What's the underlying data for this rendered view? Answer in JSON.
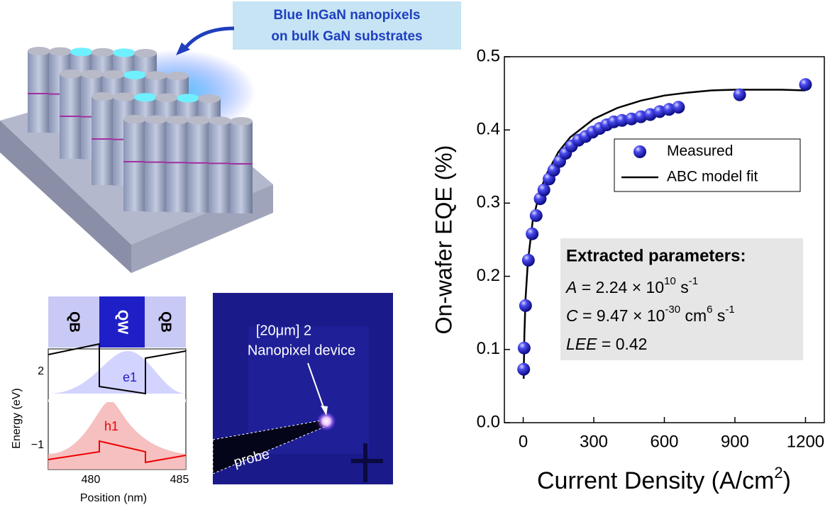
{
  "chart_data": {
    "type": "scatter",
    "xlabel": {
      "text": "Current Density (A/cm",
      "sup": "2",
      "end": ")"
    },
    "ylabel": "On-wafer EQE (%)",
    "xlim": [
      -80,
      1280
    ],
    "xticks": [
      0,
      300,
      600,
      900,
      1200
    ],
    "ylim": [
      0,
      0.5
    ],
    "yticks": [
      {
        "value": 0,
        "label": "0.0"
      },
      0.1,
      0.2,
      0.3,
      0.4,
      0.5
    ],
    "legend": "upper right",
    "series": [
      {
        "name": "Measured",
        "kind": "points",
        "color": "#2b2bd9",
        "x": [
          2,
          4,
          10,
          22,
          38,
          55,
          72,
          88,
          110,
          130,
          155,
          180,
          205,
          235,
          265,
          295,
          325,
          355,
          385,
          420,
          460,
          500,
          540,
          580,
          620,
          660,
          920,
          1200
        ],
        "values": [
          0.073,
          0.102,
          0.16,
          0.222,
          0.258,
          0.283,
          0.306,
          0.318,
          0.333,
          0.345,
          0.357,
          0.368,
          0.378,
          0.386,
          0.391,
          0.397,
          0.402,
          0.407,
          0.411,
          0.413,
          0.415,
          0.418,
          0.421,
          0.425,
          0.428,
          0.431,
          0.448,
          0.462
        ]
      },
      {
        "name": "ABC model fit",
        "kind": "line",
        "color": "#000000",
        "x": [
          2,
          5,
          10,
          20,
          40,
          70,
          100,
          150,
          200,
          300,
          400,
          500,
          600,
          700,
          800,
          900,
          1000,
          1100,
          1200
        ],
        "values": [
          0.06,
          0.12,
          0.17,
          0.22,
          0.275,
          0.315,
          0.34,
          0.37,
          0.39,
          0.415,
          0.43,
          0.44,
          0.447,
          0.451,
          0.454,
          0.455,
          0.455,
          0.455,
          0.454
        ]
      }
    ],
    "annotation": {
      "title": "Extracted parameters:",
      "lines": [
        [
          {
            "text": "A",
            "style": "i"
          },
          {
            "text": " = 2.24 × 10"
          },
          {
            "text": "10",
            "style": "sup"
          },
          {
            "text": " s"
          },
          {
            "text": "-1",
            "style": "sup"
          }
        ],
        [
          {
            "text": "C",
            "style": "i"
          },
          {
            "text": " = 9.47 × 10"
          },
          {
            "text": "-30",
            "style": "sup"
          },
          {
            "text": " cm"
          },
          {
            "text": "6",
            "style": "sup"
          },
          {
            "text": " s"
          },
          {
            "text": "-1",
            "style": "sup"
          }
        ],
        [
          {
            "text": "LEE",
            "style": "i"
          },
          {
            "text": " = 0.42"
          }
        ]
      ]
    }
  },
  "callout": [
    "Blue InGaN nanopixels",
    "on bulk GaN substrates"
  ],
  "band_diagram": {
    "layers": [
      "QB",
      "QW",
      "QB"
    ],
    "ytick_labels": [
      "2",
      "−1"
    ],
    "xtick_labels": [
      "480",
      "485"
    ],
    "xlabel": "Position (nm)",
    "ylabel": "Energy (eV)",
    "electron": "e1",
    "hole": "h1"
  },
  "micrograph": {
    "size_label": "[20μm] 2",
    "device_label": "Nanopixel device",
    "probe_label": "probe"
  }
}
